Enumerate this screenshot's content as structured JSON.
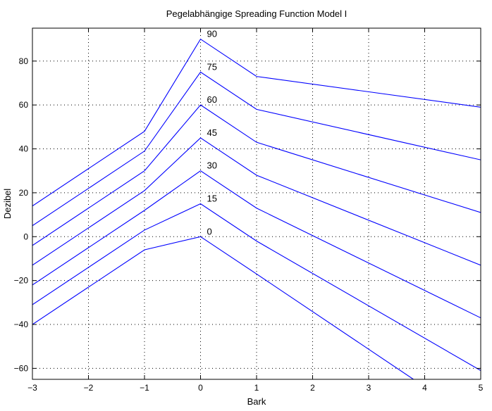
{
  "chart_data": {
    "type": "line",
    "title": "Pegelabhängige Spreading Function Model I",
    "xlabel": "Bark",
    "ylabel": "Dezibel",
    "xlim": [
      -3,
      5
    ],
    "ylim": [
      -65,
      95
    ],
    "xticks": [
      -3,
      -2,
      -1,
      0,
      1,
      2,
      3,
      4,
      5
    ],
    "yticks": [
      -60,
      -40,
      -20,
      0,
      20,
      40,
      60,
      80
    ],
    "grid": true,
    "line_color": "#0000ff",
    "series": [
      {
        "name": "0",
        "x": [
          -3,
          -1,
          0,
          1,
          3.8
        ],
        "y": [
          -40,
          -6,
          0,
          -17,
          -65
        ]
      },
      {
        "name": "15",
        "x": [
          -3,
          -1,
          0,
          1,
          5
        ],
        "y": [
          -31,
          3,
          15,
          -2,
          -61
        ]
      },
      {
        "name": "30",
        "x": [
          -3,
          -1,
          0,
          1,
          5
        ],
        "y": [
          -22,
          12,
          30,
          13,
          -37
        ]
      },
      {
        "name": "45",
        "x": [
          -3,
          -1,
          0,
          1,
          5
        ],
        "y": [
          -13,
          21,
          45,
          28,
          -13
        ]
      },
      {
        "name": "60",
        "x": [
          -3,
          -1,
          0,
          1,
          5
        ],
        "y": [
          -4,
          30,
          60,
          43,
          11
        ]
      },
      {
        "name": "75",
        "x": [
          -3,
          -1,
          0,
          1,
          5
        ],
        "y": [
          5,
          39,
          75,
          58,
          35
        ]
      },
      {
        "name": "90",
        "x": [
          -3,
          -1,
          0,
          1,
          5
        ],
        "y": [
          14,
          48,
          90,
          73,
          59
        ]
      }
    ]
  }
}
